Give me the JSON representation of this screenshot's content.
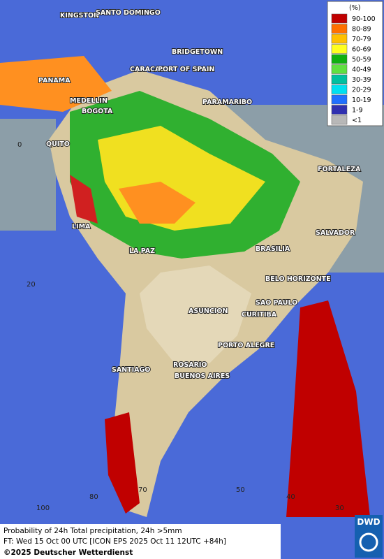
{
  "map": {
    "legend": {
      "unit": "(%)",
      "items": [
        {
          "label": "90-100",
          "color": "#c00000"
        },
        {
          "label": "80-89",
          "color": "#ff7000"
        },
        {
          "label": "70-79",
          "color": "#ffc000"
        },
        {
          "label": "60-69",
          "color": "#ffff20"
        },
        {
          "label": "50-59",
          "color": "#10b010"
        },
        {
          "label": "40-49",
          "color": "#60e040"
        },
        {
          "label": "30-39",
          "color": "#00c0a0"
        },
        {
          "label": "20-29",
          "color": "#00e0f0"
        },
        {
          "label": "10-19",
          "color": "#2070ff"
        },
        {
          "label": "1-9",
          "color": "#3030b0"
        },
        {
          "label": "<1",
          "color": "#b8b8b8"
        }
      ]
    },
    "cities": [
      "KINGSTON",
      "SANTO DOMINGO",
      "BRIDGETOWN",
      "CARACAS",
      "PORT OF SPAIN",
      "PANAMA",
      "MEDELLIN",
      "BOGOTA",
      "PARAMARIBO",
      "QUITO",
      "FORTALEZA",
      "LIMA",
      "SALVADOR",
      "BRASILIA",
      "LA PAZ",
      "BELO HORIZONTE",
      "SAO PAULO",
      "ASUNCION",
      "CURITIBA",
      "PORTO ALEGRE",
      "ROSARIO",
      "SANTIAGO",
      "BUENOS AIRES"
    ],
    "grid_labels": [
      "0",
      "20",
      "100",
      "80",
      "70",
      "50",
      "40",
      "30"
    ],
    "footer": [
      "Probability of 24h Total precipitation, 24h >5mm",
      "FT: Wed 15 Oct 00 UTC [ICON EPS 2025 Oct 11 12UTC +84h]",
      "©2025 Deutscher Wetterdienst"
    ],
    "logo": "DWD"
  }
}
